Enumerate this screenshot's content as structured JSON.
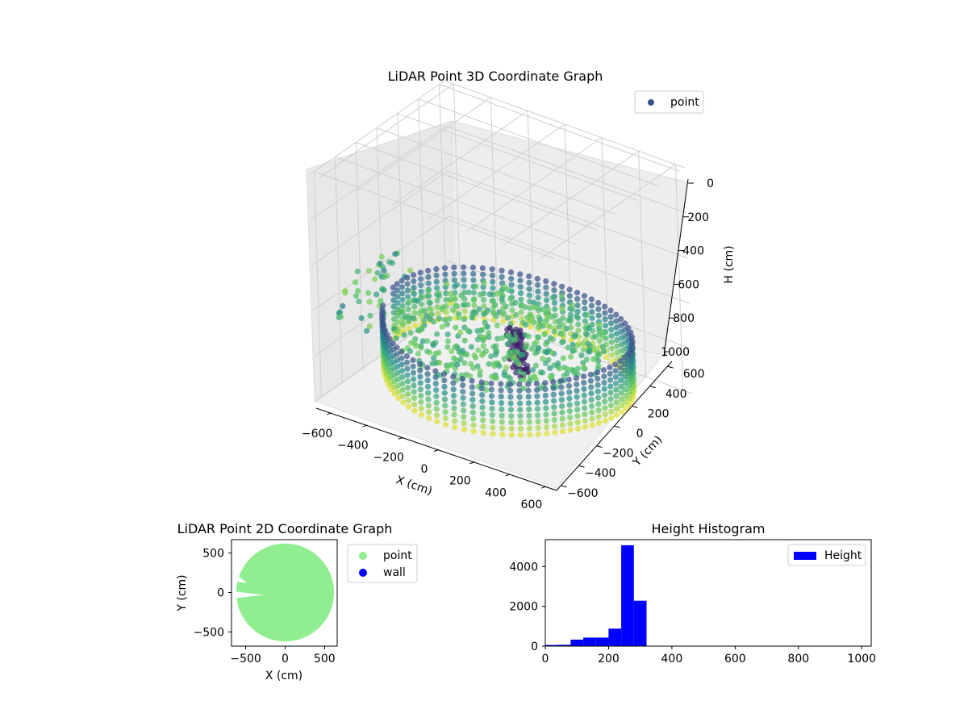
{
  "chart_data": [
    {
      "type": "scatter3d",
      "title": "LiDAR Point 3D Coordinate Graph",
      "xlabel": "X (cm)",
      "ylabel": "Y (cm)",
      "zlabel": "H (cm)",
      "xlim": [
        -650,
        650
      ],
      "ylim": [
        -650,
        650
      ],
      "zlim": [
        0,
        1000
      ],
      "z_inverted": true,
      "x_ticks": [
        "−600",
        "−400",
        "−200",
        "0",
        "200",
        "400",
        "600"
      ],
      "y_ticks": [
        "−600",
        "−400",
        "−200",
        "0",
        "200",
        "400",
        "600"
      ],
      "z_ticks": [
        "0",
        "200",
        "400",
        "600",
        "800",
        "1000"
      ],
      "colormap": "viridis",
      "grid": true,
      "legend": {
        "position": "top-right",
        "entries": [
          {
            "name": "point",
            "color": "#3b528b"
          }
        ]
      },
      "shape": "ring of scanned points at radius about 500-650 cm, height 80-310 cm, with a dense interior floor surface and a tall dark cluster near the center"
    },
    {
      "type": "scatter",
      "title": "LiDAR Point 2D Coordinate Graph",
      "xlabel": "X (cm)",
      "ylabel": "Y (cm)",
      "xlim": [
        -680,
        660
      ],
      "ylim": [
        -680,
        670
      ],
      "x_ticks": [
        "−500",
        "0",
        "500"
      ],
      "y_ticks": [
        "−500",
        "0",
        "500"
      ],
      "legend": {
        "position": "outside-right",
        "entries": [
          {
            "name": "point",
            "color": "#90ee90"
          },
          {
            "name": "wall",
            "color": "#0000ff"
          }
        ]
      },
      "shape": "points fill a disc of radius about 620 cm; a wedge around y=0 on the negative x side has gaps"
    },
    {
      "type": "histogram",
      "title": "Height Histogram",
      "xlim": [
        0,
        1030
      ],
      "ylim": [
        0,
        5350
      ],
      "x_ticks": [
        "0",
        "200",
        "400",
        "600",
        "800",
        "1000"
      ],
      "y_ticks": [
        "0",
        "2000",
        "4000"
      ],
      "bar_color": "#0000ff",
      "legend": {
        "position": "top-right",
        "entries": [
          {
            "name": "Height",
            "color": "#0000ff"
          }
        ]
      },
      "bins": [
        {
          "x0": 0,
          "x1": 40,
          "count": 60
        },
        {
          "x0": 40,
          "x1": 80,
          "count": 70
        },
        {
          "x0": 80,
          "x1": 120,
          "count": 330
        },
        {
          "x0": 120,
          "x1": 160,
          "count": 430
        },
        {
          "x0": 160,
          "x1": 200,
          "count": 430
        },
        {
          "x0": 200,
          "x1": 240,
          "count": 880
        },
        {
          "x0": 240,
          "x1": 280,
          "count": 5070
        },
        {
          "x0": 280,
          "x1": 320,
          "count": 2280
        }
      ]
    }
  ]
}
